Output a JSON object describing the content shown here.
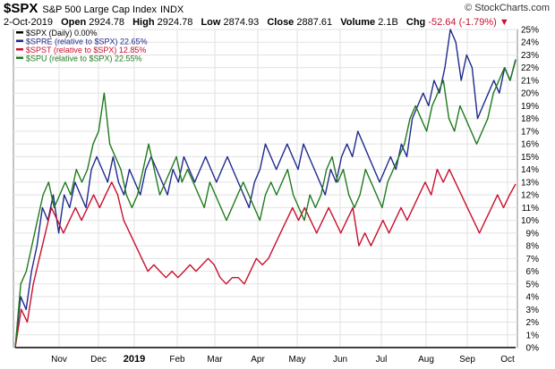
{
  "header": {
    "symbol": "$SPX",
    "name": "S&P 500 Large Cap Index",
    "index_tag": "INDX",
    "brand": "© StockCharts.com",
    "date": "2-Oct-2019",
    "open_label": "Open",
    "open": "2924.78",
    "high_label": "High",
    "high": "2924.78",
    "low_label": "Low",
    "low": "2874.93",
    "close_label": "Close",
    "close": "2887.61",
    "volume_label": "Volume",
    "volume": "2.1B",
    "chg_label": "Chg",
    "chg": "-52.64 (-1.79%)",
    "chg_arrow": "▼"
  },
  "chart_data": {
    "type": "line",
    "xlabel": "",
    "ylabel": "",
    "ylim": [
      0,
      25
    ],
    "x_ticks": [
      "Nov",
      "Dec",
      "2019",
      "Feb",
      "Mar",
      "Apr",
      "May",
      "Jun",
      "Jul",
      "Aug",
      "Sep",
      "Oct"
    ],
    "y_ticks": [
      "0%",
      "1%",
      "2%",
      "3%",
      "4%",
      "5%",
      "6%",
      "7%",
      "8%",
      "9%",
      "10%",
      "11%",
      "12%",
      "13%",
      "14%",
      "15%",
      "16%",
      "17%",
      "18%",
      "19%",
      "20%",
      "21%",
      "22%",
      "23%",
      "24%",
      "25%"
    ],
    "grid": true,
    "legend_position": "top-left",
    "series": [
      {
        "name": "$SPX (Daily) 0.00%",
        "color": "#000000",
        "values": [
          0,
          0,
          0,
          0,
          0,
          0,
          0,
          0,
          0,
          0,
          0,
          0,
          0,
          0,
          0,
          0,
          0,
          0,
          0,
          0,
          0,
          0,
          0,
          0,
          0,
          0,
          0,
          0,
          0,
          0,
          0,
          0,
          0,
          0,
          0,
          0,
          0,
          0,
          0,
          0,
          0,
          0,
          0,
          0,
          0,
          0,
          0,
          0,
          0,
          0,
          0,
          0,
          0,
          0,
          0,
          0,
          0,
          0,
          0,
          0,
          0,
          0,
          0,
          0,
          0,
          0,
          0,
          0,
          0,
          0,
          0,
          0,
          0,
          0,
          0,
          0,
          0,
          0,
          0,
          0,
          0,
          0,
          0
        ]
      },
      {
        "name": "$SPRE (relative to $SPX) 22.65%",
        "color": "#1f2a8c",
        "values": [
          0,
          4,
          3,
          6,
          8,
          11,
          10,
          12,
          9,
          12,
          11,
          13,
          12,
          11,
          14,
          15,
          14,
          13,
          15,
          13,
          12,
          14,
          13,
          12,
          14,
          15,
          14,
          13,
          12,
          14,
          13,
          15,
          14,
          13,
          14,
          15,
          14,
          13,
          14,
          15,
          14,
          13,
          12,
          11,
          13,
          14,
          16,
          15,
          14,
          15,
          16,
          15,
          14,
          16,
          15,
          14,
          13,
          12,
          14,
          13,
          15,
          16,
          15,
          17,
          16,
          15,
          14,
          13,
          14,
          15,
          14,
          16,
          15,
          18,
          19,
          20,
          19,
          21,
          20,
          22,
          25,
          24,
          21,
          23,
          22,
          18,
          19,
          20,
          21,
          20,
          22,
          21,
          22.65
        ]
      },
      {
        "name": "$SPST (relative to $SPX) 12.85%",
        "color": "#c8102e",
        "values": [
          0,
          3,
          2,
          5,
          7,
          9,
          11,
          10,
          9,
          10,
          11,
          10,
          11,
          12,
          11,
          12,
          13,
          12,
          10,
          9,
          8,
          7,
          6,
          6.5,
          6,
          5.5,
          6,
          5.5,
          6,
          6.5,
          6,
          6.5,
          7,
          6.5,
          5.5,
          5,
          5.5,
          5.5,
          5,
          6,
          7,
          6.5,
          7,
          8,
          9,
          10,
          11,
          10,
          11,
          10,
          9,
          10,
          11,
          10,
          9,
          10,
          11,
          8,
          9,
          8,
          9,
          10,
          9,
          10,
          11,
          10,
          11,
          12,
          13,
          12,
          14,
          13,
          14,
          13,
          12,
          11,
          10,
          9,
          10,
          11,
          12,
          11,
          12,
          12.85
        ]
      },
      {
        "name": "$SPU (relative to $SPX) 22.55%",
        "color": "#1e7a1e",
        "values": [
          0,
          5,
          6,
          8,
          10,
          12,
          13,
          11,
          12,
          13,
          12,
          14,
          13,
          14,
          16,
          17,
          20,
          16,
          15,
          14,
          12,
          11,
          12,
          14,
          16,
          14,
          12,
          13,
          14,
          15,
          13,
          14,
          13,
          12,
          11,
          13,
          12,
          11,
          10,
          11,
          12,
          13,
          12,
          11,
          10,
          12,
          13,
          12,
          13,
          14,
          12,
          11,
          10,
          12,
          11,
          12,
          14,
          15,
          13,
          14,
          12,
          11,
          12,
          14,
          13,
          12,
          11,
          13,
          14,
          15,
          16,
          18,
          19,
          18,
          17,
          19,
          20,
          21,
          18,
          17,
          19,
          18,
          17,
          16,
          17,
          18,
          20,
          21,
          22,
          21,
          22.55
        ]
      }
    ]
  }
}
